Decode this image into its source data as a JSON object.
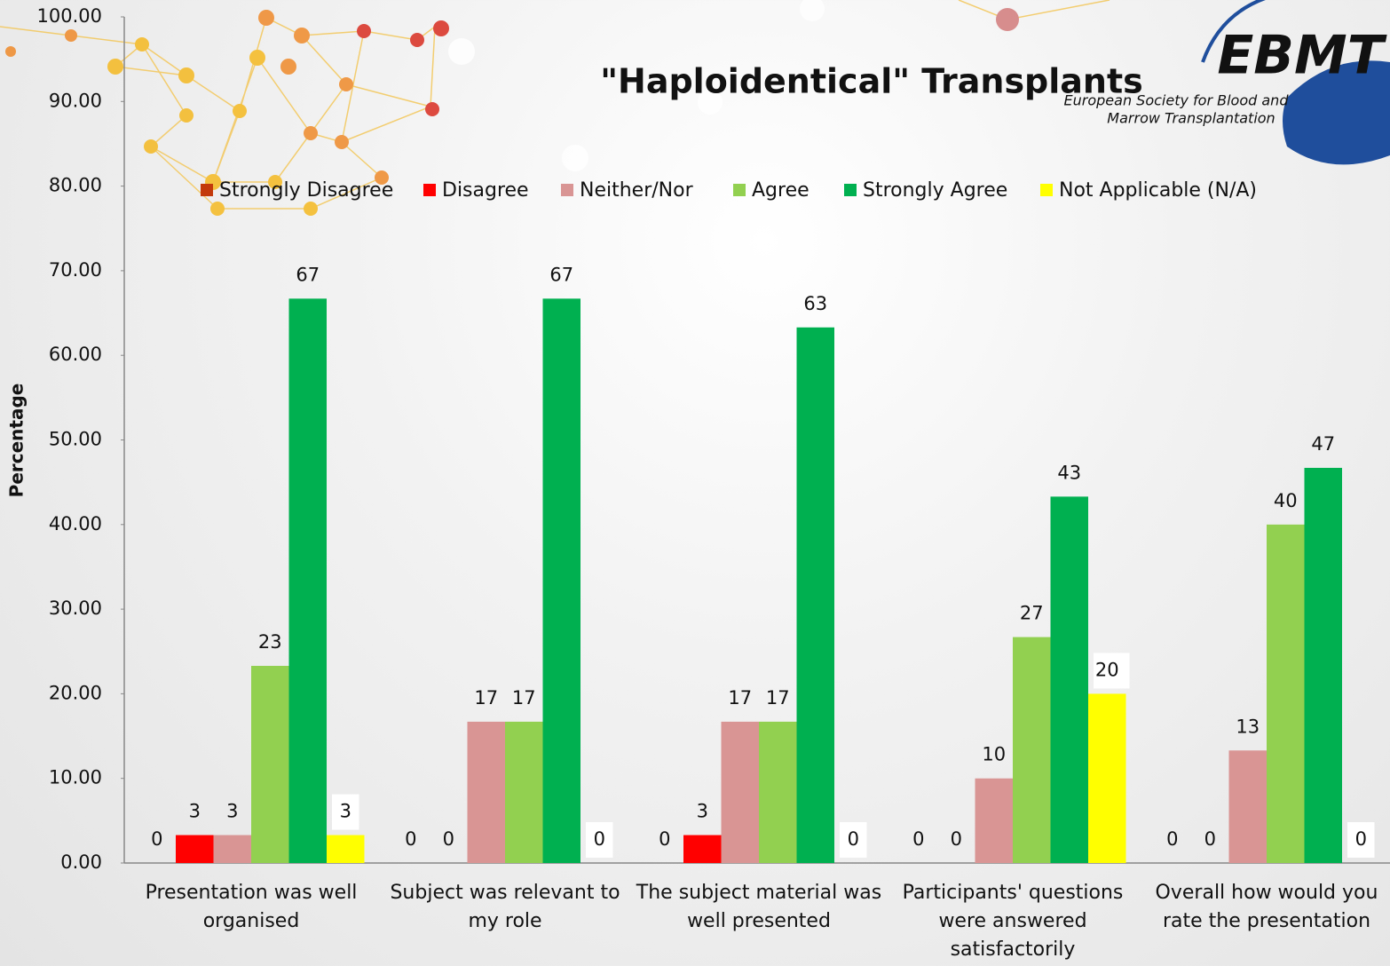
{
  "chart_data": {
    "type": "bar",
    "title": "\"Haploidentical\" Transplants",
    "ylabel": "Percentage",
    "categories": [
      "Presentation was well organised",
      "Subject was relevant to my role",
      "The subject material was well presented",
      "Participants' questions were answered satisfactorily",
      "Overall how would you rate the presentation"
    ],
    "series": [
      {
        "name": "Strongly Disagree",
        "color": "#c33a0c",
        "values": [
          0,
          0,
          0,
          0,
          0
        ]
      },
      {
        "name": "Disagree",
        "color": "#ff0000",
        "values": [
          3.3,
          0,
          3.3,
          0,
          0
        ],
        "value_labels": [
          "3",
          "0",
          "3",
          "0",
          "0"
        ]
      },
      {
        "name": "Neither/Nor",
        "color": "#d99594",
        "values": [
          3.3,
          16.7,
          16.7,
          10,
          13.3
        ],
        "value_labels": [
          "3",
          "17",
          "17",
          "10",
          "13"
        ]
      },
      {
        "name": "Agree",
        "color": "#92d050",
        "values": [
          23.3,
          16.7,
          16.7,
          26.7,
          40
        ],
        "value_labels": [
          "23",
          "17",
          "17",
          "27",
          "40"
        ]
      },
      {
        "name": "Strongly Agree",
        "color": "#00b050",
        "values": [
          66.7,
          66.7,
          63.3,
          43.3,
          46.7
        ],
        "value_labels": [
          "67",
          "67",
          "63",
          "43",
          "47"
        ]
      },
      {
        "name": "Not Applicable (N/A)",
        "color": "#ffff00",
        "values": [
          3.3,
          0,
          0,
          20,
          0
        ],
        "value_labels": [
          "3",
          "0",
          "0",
          "20",
          "0"
        ]
      }
    ],
    "ylim": [
      0,
      100
    ],
    "yticks": [
      {
        "value": 0,
        "label": "0.00"
      },
      {
        "value": 10,
        "label": "10.00"
      },
      {
        "value": 20,
        "label": "20.00"
      },
      {
        "value": 30,
        "label": "30.00"
      },
      {
        "value": 40,
        "label": "40.00"
      },
      {
        "value": 50,
        "label": "50.00"
      },
      {
        "value": 60,
        "label": "60.00"
      },
      {
        "value": 70,
        "label": "70.00"
      },
      {
        "value": 80,
        "label": "80.00"
      },
      {
        "value": 90,
        "label": "90.00"
      },
      {
        "value": 100,
        "label": "100.00"
      }
    ],
    "grid": false,
    "legend": "top"
  },
  "branding": {
    "logo": "EBMT",
    "tagline": [
      "European Society for Blood and",
      "Marrow Transplantation"
    ]
  }
}
